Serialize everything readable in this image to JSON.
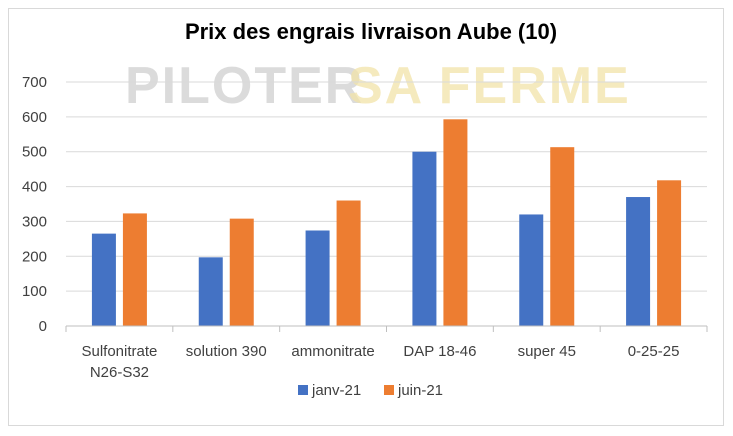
{
  "chart_data": {
    "type": "bar",
    "title": "Prix des engrais livraison Aube (10)",
    "watermark": {
      "part1": "PILOTER",
      "part2": "SA FERME"
    },
    "categories": [
      [
        "Sulfonitrate",
        "N26-S32"
      ],
      [
        "solution 390"
      ],
      [
        "ammonitrate"
      ],
      [
        "DAP 18-46"
      ],
      [
        "super 45"
      ],
      [
        "0-25-25"
      ]
    ],
    "series": [
      {
        "name": "janv-21",
        "color": "#4472c4",
        "values": [
          265,
          197,
          274,
          500,
          320,
          370
        ]
      },
      {
        "name": "juin-21",
        "color": "#ed7d31",
        "values": [
          323,
          308,
          360,
          593,
          513,
          418
        ]
      }
    ],
    "ylim": [
      0,
      700
    ],
    "yticks": [
      "0",
      "100",
      "200",
      "300",
      "400",
      "500",
      "600",
      "700"
    ],
    "grid": true,
    "legend": "bottom"
  }
}
